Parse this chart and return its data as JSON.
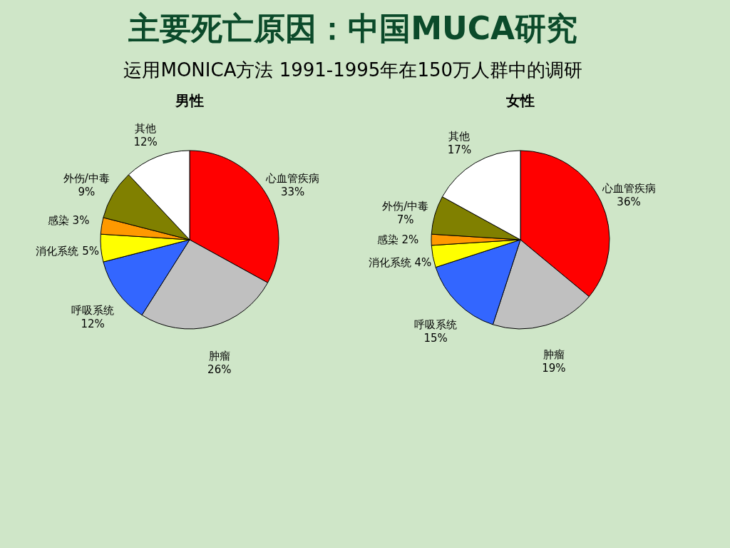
{
  "chart_data": [
    {
      "type": "pie",
      "title": "男性",
      "annotations": [
        "主要死亡原因：中国MUCA研究",
        "运用MONICA方法 1991-1995年在150万人群中的调研"
      ],
      "categories": [
        "心血管疾病",
        "肿瘤",
        "呼吸系统",
        "消化系统",
        "感染",
        "外伤/中毒",
        "其他"
      ],
      "values": [
        33,
        26,
        12,
        5,
        3,
        9,
        12
      ],
      "value_labels": [
        "33%",
        "26%",
        "12%",
        "5%",
        "3%",
        "9%",
        "12%"
      ],
      "colors": [
        "#ff0000",
        "#c0c0c0",
        "#3366ff",
        "#ffff00",
        "#ff9900",
        "#808000",
        "#ffffff"
      ]
    },
    {
      "type": "pie",
      "title": "女性",
      "categories": [
        "心血管疾病",
        "肿瘤",
        "呼吸系统",
        "消化系统",
        "感染",
        "外伤/中毒",
        "其他"
      ],
      "values": [
        36,
        19,
        15,
        4,
        2,
        7,
        17
      ],
      "value_labels": [
        "36%",
        "19%",
        "15%",
        "4%",
        "2%",
        "7%",
        "17%"
      ],
      "colors": [
        "#ff0000",
        "#c0c0c0",
        "#3366ff",
        "#ffff00",
        "#ff9900",
        "#808000",
        "#ffffff"
      ]
    }
  ]
}
